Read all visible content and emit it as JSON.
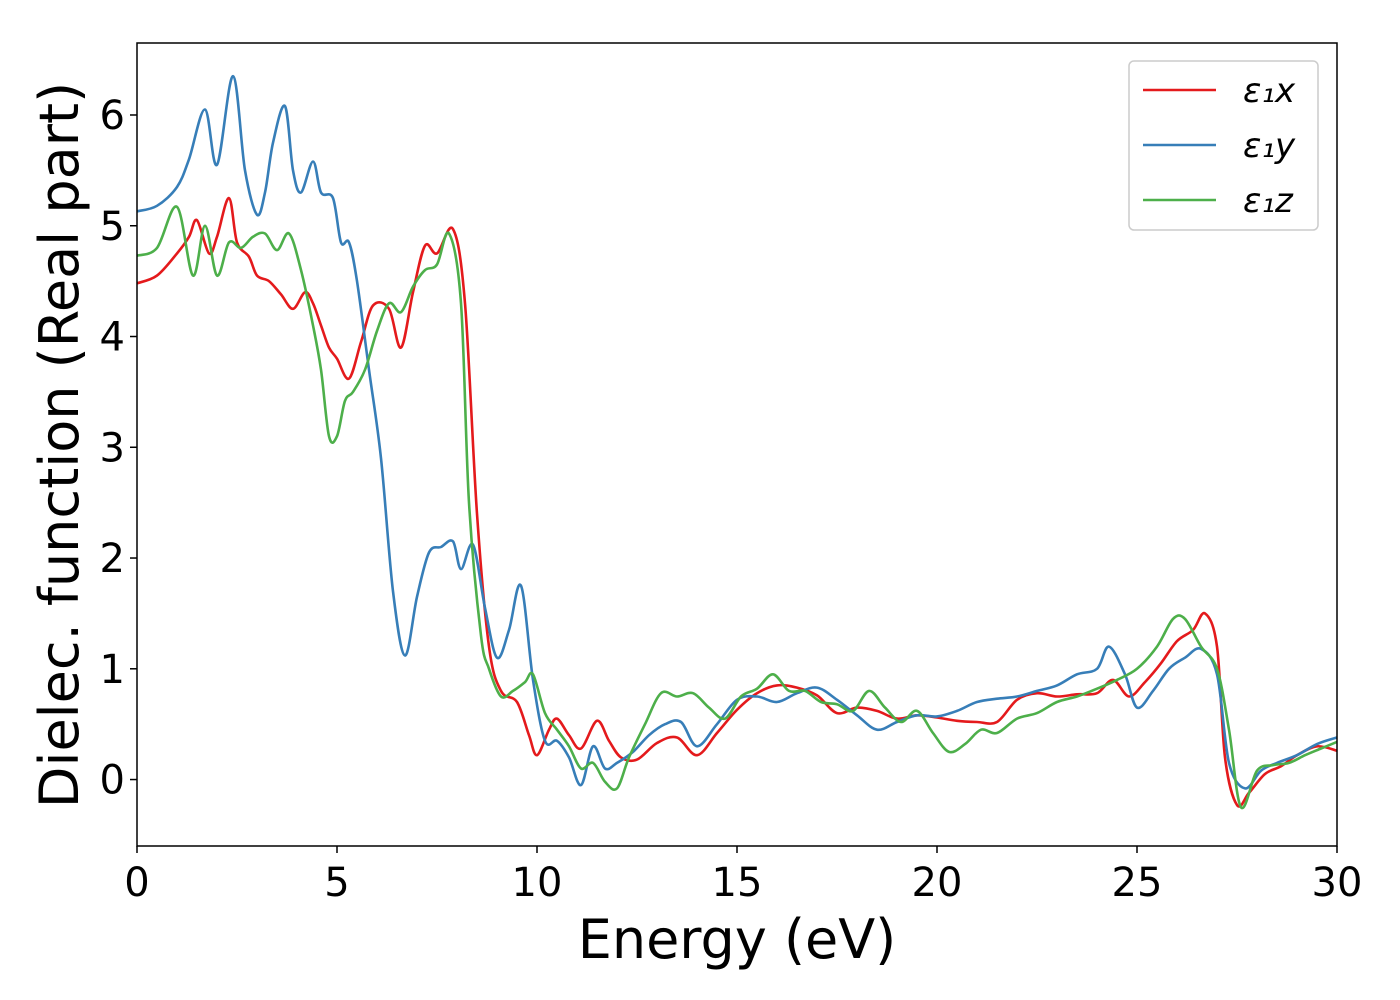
{
  "chart_data": {
    "type": "line",
    "title": "",
    "xlabel": "Energy (eV)",
    "ylabel": "Dielec. function (Real part)",
    "xlim": [
      0,
      30
    ],
    "ylim": [
      -0.6,
      6.65
    ],
    "xticks": [
      0,
      5,
      10,
      15,
      20,
      25,
      30
    ],
    "yticks": [
      0,
      1,
      2,
      3,
      4,
      5,
      6
    ],
    "grid": false,
    "legend_position": "top-right",
    "series": [
      {
        "name": "ε₁x",
        "color": "#e41a1c",
        "x": [
          0,
          0.5,
          1,
          1.3,
          1.5,
          1.8,
          2,
          2.3,
          2.5,
          2.8,
          3,
          3.3,
          3.6,
          3.9,
          4.2,
          4.4,
          4.6,
          4.8,
          5,
          5.3,
          5.6,
          5.9,
          6.3,
          6.6,
          6.9,
          7.2,
          7.5,
          7.9,
          8.2,
          8.5,
          8.8,
          9.1,
          9.5,
          9.8,
          10,
          10.3,
          10.5,
          10.8,
          11.1,
          11.5,
          11.8,
          12.1,
          12.5,
          13,
          13.5,
          14,
          14.5,
          15,
          15.5,
          16,
          16.5,
          17,
          17.5,
          18,
          18.5,
          19,
          19.5,
          20,
          20.5,
          21,
          21.5,
          22,
          22.5,
          23,
          23.5,
          24,
          24.4,
          24.8,
          25.2,
          25.6,
          26,
          26.4,
          26.7,
          27,
          27.2,
          27.5,
          27.8,
          28.2,
          28.6,
          29,
          29.5,
          30
        ],
        "values": [
          4.48,
          4.55,
          4.75,
          4.9,
          5.05,
          4.75,
          4.9,
          5.25,
          4.85,
          4.72,
          4.55,
          4.5,
          4.38,
          4.25,
          4.4,
          4.3,
          4.1,
          3.9,
          3.8,
          3.62,
          3.95,
          4.28,
          4.25,
          3.9,
          4.4,
          4.82,
          4.75,
          4.97,
          4.3,
          2.4,
          1.2,
          0.8,
          0.7,
          0.4,
          0.22,
          0.45,
          0.55,
          0.4,
          0.28,
          0.53,
          0.35,
          0.2,
          0.18,
          0.33,
          0.38,
          0.22,
          0.42,
          0.63,
          0.78,
          0.85,
          0.83,
          0.76,
          0.6,
          0.65,
          0.62,
          0.55,
          0.58,
          0.56,
          0.53,
          0.52,
          0.52,
          0.72,
          0.78,
          0.75,
          0.77,
          0.78,
          0.9,
          0.75,
          0.88,
          1.05,
          1.25,
          1.35,
          1.5,
          1.2,
          0.2,
          -0.23,
          -0.12,
          0.05,
          0.12,
          0.22,
          0.3,
          0.26
        ]
      },
      {
        "name": "ε₁y",
        "color": "#377eb8",
        "x": [
          0,
          0.5,
          1,
          1.3,
          1.7,
          2,
          2.4,
          2.7,
          3,
          3.2,
          3.4,
          3.7,
          3.9,
          4.1,
          4.4,
          4.6,
          4.9,
          5.1,
          5.3,
          5.5,
          5.8,
          6.1,
          6.4,
          6.7,
          7,
          7.3,
          7.6,
          7.9,
          8.1,
          8.4,
          8.7,
          9,
          9.3,
          9.6,
          9.9,
          10.2,
          10.5,
          10.8,
          11.1,
          11.4,
          11.7,
          12,
          12.4,
          12.8,
          13.2,
          13.6,
          14,
          14.5,
          15,
          15.5,
          16,
          16.5,
          17,
          17.5,
          18,
          18.5,
          19,
          19.5,
          20,
          20.5,
          21,
          21.5,
          22,
          22.5,
          23,
          23.5,
          24,
          24.3,
          24.7,
          25,
          25.4,
          25.8,
          26.2,
          26.6,
          27,
          27.3,
          27.7,
          28.1,
          28.5,
          29,
          29.5,
          30
        ],
        "values": [
          5.13,
          5.18,
          5.35,
          5.6,
          6.05,
          5.55,
          6.35,
          5.5,
          5.1,
          5.3,
          5.75,
          6.08,
          5.5,
          5.3,
          5.58,
          5.3,
          5.25,
          4.85,
          4.85,
          4.5,
          3.7,
          2.9,
          1.7,
          1.12,
          1.65,
          2.05,
          2.1,
          2.15,
          1.9,
          2.12,
          1.55,
          1.1,
          1.35,
          1.75,
          0.9,
          0.35,
          0.35,
          0.2,
          -0.05,
          0.3,
          0.1,
          0.15,
          0.25,
          0.4,
          0.5,
          0.52,
          0.3,
          0.5,
          0.72,
          0.75,
          0.7,
          0.78,
          0.83,
          0.72,
          0.58,
          0.45,
          0.52,
          0.58,
          0.57,
          0.62,
          0.7,
          0.73,
          0.75,
          0.8,
          0.85,
          0.95,
          1.0,
          1.2,
          0.95,
          0.65,
          0.8,
          1.0,
          1.1,
          1.18,
          0.95,
          0.15,
          -0.08,
          0.08,
          0.15,
          0.22,
          0.32,
          0.38
        ]
      },
      {
        "name": "ε₁z",
        "color": "#4daf4a",
        "x": [
          0,
          0.5,
          1,
          1.4,
          1.7,
          2,
          2.3,
          2.6,
          2.9,
          3.2,
          3.5,
          3.8,
          4.1,
          4.4,
          4.6,
          4.8,
          5,
          5.2,
          5.4,
          5.7,
          6,
          6.3,
          6.6,
          6.9,
          7.2,
          7.5,
          7.8,
          8.1,
          8.3,
          8.6,
          8.8,
          9.1,
          9.4,
          9.7,
          9.9,
          10.2,
          10.5,
          10.8,
          11.1,
          11.4,
          11.7,
          12,
          12.3,
          12.7,
          13.1,
          13.5,
          13.9,
          14.3,
          14.7,
          15.1,
          15.5,
          15.9,
          16.3,
          16.7,
          17.1,
          17.5,
          17.9,
          18.3,
          18.7,
          19.1,
          19.5,
          19.9,
          20.3,
          20.7,
          21.1,
          21.5,
          22,
          22.5,
          23,
          23.5,
          24,
          24.5,
          25,
          25.5,
          25.9,
          26.2,
          26.6,
          27,
          27.3,
          27.6,
          28,
          28.4,
          28.8,
          29.2,
          29.6,
          30
        ],
        "values": [
          4.73,
          4.8,
          5.17,
          4.55,
          5.0,
          4.55,
          4.85,
          4.8,
          4.9,
          4.93,
          4.78,
          4.93,
          4.6,
          4.1,
          3.7,
          3.1,
          3.1,
          3.42,
          3.5,
          3.7,
          4.05,
          4.3,
          4.22,
          4.45,
          4.6,
          4.65,
          4.93,
          4.3,
          2.5,
          1.3,
          1.0,
          0.75,
          0.8,
          0.88,
          0.95,
          0.6,
          0.45,
          0.3,
          0.1,
          0.15,
          -0.02,
          -0.08,
          0.2,
          0.5,
          0.78,
          0.75,
          0.78,
          0.65,
          0.55,
          0.75,
          0.82,
          0.95,
          0.8,
          0.8,
          0.7,
          0.68,
          0.62,
          0.8,
          0.65,
          0.52,
          0.62,
          0.42,
          0.25,
          0.32,
          0.45,
          0.42,
          0.55,
          0.6,
          0.7,
          0.75,
          0.82,
          0.9,
          1.0,
          1.2,
          1.45,
          1.45,
          1.2,
          1.0,
          0.45,
          -0.25,
          0.08,
          0.13,
          0.15,
          0.22,
          0.28,
          0.34
        ]
      }
    ]
  }
}
